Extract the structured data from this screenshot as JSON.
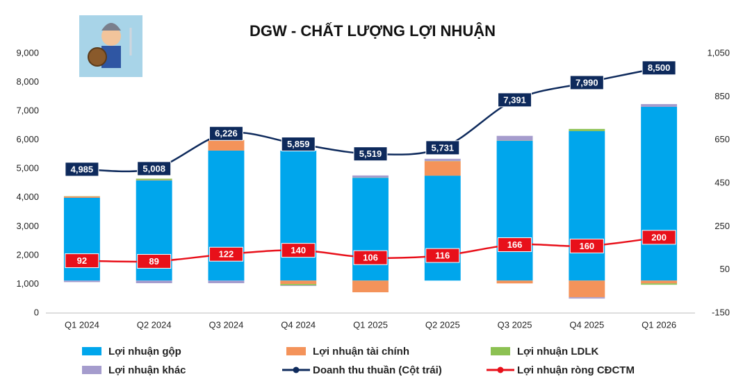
{
  "chart_data": {
    "type": "bar-line",
    "title": "DGW - CHẤT LƯỢNG LỢI NHUẬN",
    "categories": [
      "Q1 2024",
      "Q2 2024",
      "Q3 2024",
      "Q4 2024",
      "Q1 2025",
      "Q2 2025",
      "Q3 2025",
      "Q4 2025",
      "Q1 2026"
    ],
    "ylim": [
      0,
      9000
    ],
    "yticks": [
      0,
      {
        "value": 1000,
        "label": "1,000"
      },
      {
        "value": 2000,
        "label": "2,000"
      },
      {
        "value": 3000,
        "label": "3,000"
      },
      {
        "value": 4000,
        "label": "4,000"
      },
      {
        "value": 5000,
        "label": "5,000"
      },
      {
        "value": 6000,
        "label": "6,000"
      },
      {
        "value": 7000,
        "label": "7,000"
      },
      {
        "value": 8000,
        "label": "8,000"
      },
      {
        "value": 9000,
        "label": "9,000"
      }
    ],
    "y2lim": [
      -150,
      1050
    ],
    "y2ticks": [
      -150,
      50,
      250,
      450,
      650,
      850,
      {
        "value": 1050,
        "label": "1,050"
      }
    ],
    "grid": false,
    "series": [
      {
        "name": "Lợi nhuận gộp",
        "type": "bar",
        "axis": "y2",
        "color": "#00a6ec",
        "values": [
          383,
          463,
          601,
          601,
          475,
          485,
          646,
          691,
          803
        ]
      },
      {
        "name": "Lợi nhuận tài chính",
        "type": "bar",
        "axis": "y2",
        "color": "#f4935a",
        "values": [
          6,
          2,
          48,
          -16,
          -54,
          67,
          -13,
          -77,
          -13
        ]
      },
      {
        "name": "Lợi nhuận LDLK",
        "type": "bar",
        "axis": "y2",
        "color": "#8cc152",
        "values": [
          1,
          6,
          1,
          -6,
          1,
          1,
          1,
          10,
          -6
        ]
      },
      {
        "name": "Lợi nhuận khác",
        "type": "bar",
        "axis": "y2",
        "color": "#a59ccd",
        "values": [
          -7,
          -12,
          -12,
          -3,
          10,
          10,
          22,
          -6,
          13
        ]
      },
      {
        "name": "Doanh thu thuần (Cột trái)",
        "type": "line",
        "color": "#0e2a5c",
        "values": [
          4985,
          5008,
          6226,
          5859,
          5519,
          5731,
          7391,
          7990,
          8500
        ],
        "value_labels": [
          "4,985",
          "5,008",
          "6,226",
          "5,859",
          "5,519",
          "5,731",
          "7,391",
          "7,990",
          "8,500"
        ]
      },
      {
        "name": "Lợi nhuận ròng CĐCTM",
        "type": "line",
        "axis": "y2",
        "color": "#e8101a",
        "values": [
          92,
          89,
          122,
          140,
          106,
          116,
          166,
          160,
          200
        ]
      }
    ]
  }
}
